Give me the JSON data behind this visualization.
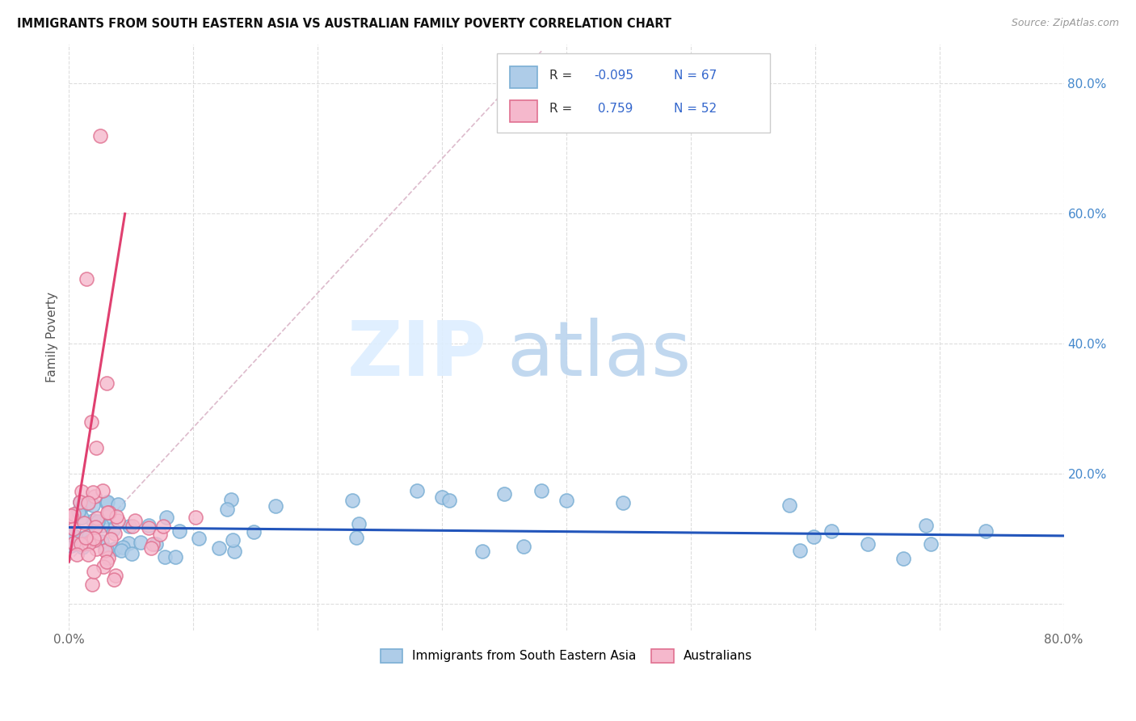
{
  "title": "IMMIGRANTS FROM SOUTH EASTERN ASIA VS AUSTRALIAN FAMILY POVERTY CORRELATION CHART",
  "source": "Source: ZipAtlas.com",
  "ylabel": "Family Poverty",
  "legend_label1": "Immigrants from South Eastern Asia",
  "legend_label2": "Australians",
  "r1": "-0.095",
  "n1": "67",
  "r2": "0.759",
  "n2": "52",
  "blue_edge": "#7bafd4",
  "blue_face": "#aecce8",
  "pink_edge": "#e07090",
  "pink_face": "#f5b8cc",
  "blue_line_color": "#2255bb",
  "pink_line_color": "#e04070",
  "dash_color": "#ddbbcc",
  "xlim": [
    0.0,
    0.8
  ],
  "ylim": [
    -0.04,
    0.86
  ],
  "yticks": [
    0.0,
    0.2,
    0.4,
    0.6,
    0.8
  ],
  "xticks": [
    0.0,
    0.1,
    0.2,
    0.3,
    0.4,
    0.5,
    0.6,
    0.7,
    0.8
  ],
  "blue_seed": 42,
  "pink_seed": 7
}
